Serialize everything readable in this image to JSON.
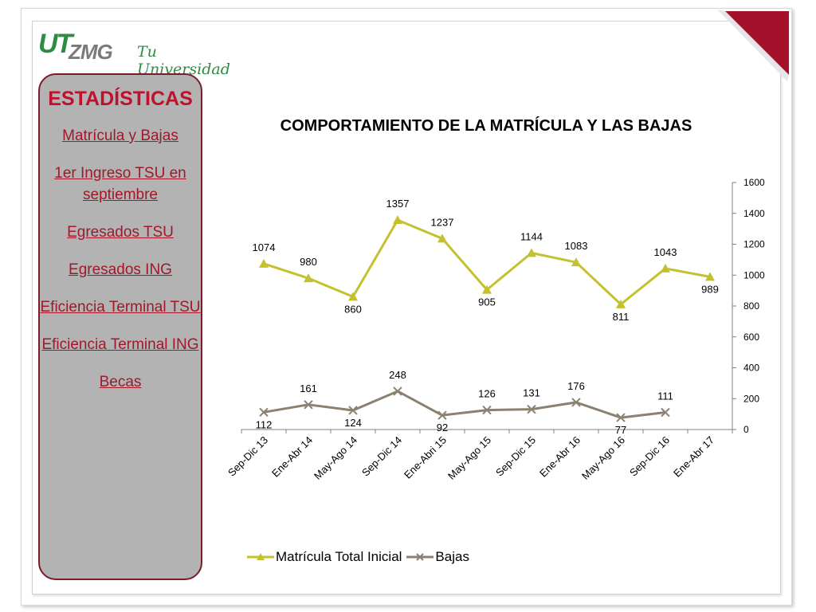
{
  "logo": {
    "ut": "UT",
    "zmg": "ZMG",
    "slogan": "Tu Universidad !"
  },
  "sidebar": {
    "title": "ESTADÍSTICAS",
    "items": [
      "Matrícula y Bajas",
      "1er Ingreso TSU en septiembre",
      "Egresados TSU",
      "Egresados ING",
      "Eficiencia Terminal TSU",
      "Eficiencia Terminal ING",
      "Becas"
    ]
  },
  "colors": {
    "accent": "#a11829",
    "panel": "#b3b3b3",
    "matricula": "#c4c12e",
    "bajas": "#8c8170"
  },
  "chart_data": {
    "type": "line",
    "title": "COMPORTAMIENTO DE LA MATRÍCULA Y LAS BAJAS",
    "categories": [
      "Sep-Dic 13",
      "Ene-Abr 14",
      "May-Ago 14",
      "Sep-Dic 14",
      "Ene-Abri 15",
      "May-Ago 15",
      "Sep-Dic 15",
      "Ene-Abr 16",
      "May-Ago 16",
      "Sep-Dic 16",
      "Ene-Abr 17"
    ],
    "y_ticks": [
      "0",
      "200",
      "400",
      "600",
      "800",
      "1000",
      "1200",
      "1400",
      "1600"
    ],
    "ylim": [
      0,
      1600
    ],
    "y_axis_side": "right",
    "grid": false,
    "legend_position": "bottom",
    "series": [
      {
        "name": "Matrícula Total Inicial",
        "marker": "triangle",
        "values": [
          1074,
          980,
          860,
          1357,
          1237,
          905,
          1144,
          1083,
          811,
          1043,
          989
        ]
      },
      {
        "name": "Bajas",
        "marker": "x",
        "values": [
          112,
          161,
          124,
          248,
          92,
          126,
          131,
          176,
          77,
          111,
          null
        ]
      }
    ]
  }
}
